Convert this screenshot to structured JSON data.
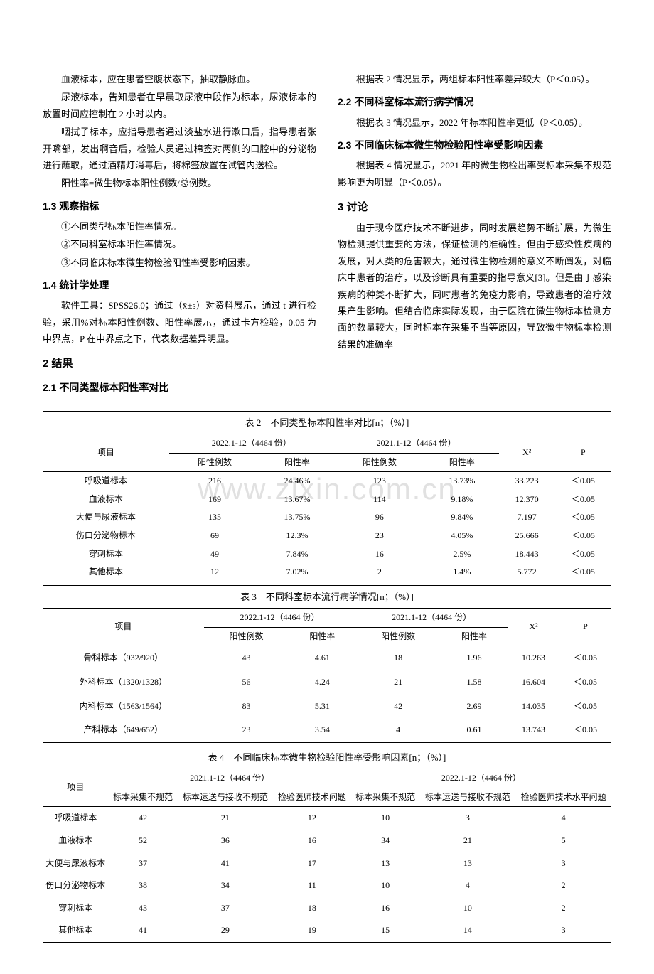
{
  "left_column": {
    "p1": "血液标本，应在患者空腹状态下，抽取静脉血。",
    "p2": "尿液标本，告知患者在早晨取尿液中段作为标本，尿液标本的放置时间应控制在 2 小时以内。",
    "p3": "咽拭子标本，应指导患者通过淡盐水进行漱口后，指导患者张开嘴部，发出啊音后，检验人员通过棉签对两侧的口腔中的分泌物进行蘸取，通过酒精灯消毒后，将棉签放置在试管内送检。",
    "p4": "阳性率=微生物标本阳性例数/总例数。",
    "h1_3": "1.3 观察指标",
    "p5": "①不同类型标本阳性率情况。",
    "p6": "②不同科室标本阳性率情况。",
    "p7": "③不同临床标本微生物检验阳性率受影响因素。",
    "h1_4": "1.4 统计学处理",
    "p8": "软件工具：SPSS26.0；通过（x̄±s）对资料展示，通过 t 进行检验，采用%对标本阳性例数、阳性率展示，通过卡方检验，0.05 为中界点，P 在中界点之下，代表数据差异明显。",
    "h2": "2 结果",
    "h2_1": "2.1 不同类型标本阳性率对比"
  },
  "right_column": {
    "p1": "根据表 2 情况显示，两组标本阳性率差异较大（P＜0.05）。",
    "h2_2": "2.2 不同科室标本流行病学情况",
    "p2": "根据表 3 情况显示，2022 年标本阳性率更低（P＜0.05）。",
    "h2_3": "2.3 不同临床标本微生物检验阳性率受影响因素",
    "p3": "根据表 4 情况显示，2021 年的微生物检出率受标本采集不规范影响更为明显（P＜0.05）。",
    "h3": "3 讨论",
    "p4": "由于现今医疗技术不断进步，同时发展趋势不断扩展，为微生物检测提供重要的方法，保证检测的准确性。但由于感染性疾病的发展，对人类的危害较大，通过微生物检测的意义不断阐发，对临床中患者的治疗，以及诊断具有重要的指导意义[3]。但是由于感染疾病的种类不断扩大，同时患者的免疫力影响，导致患者的治疗效果产生影响。但结合临床实际发现，由于医院在微生物标本检测方面的数量较大，同时标本在采集不当等原因，导致微生物标本检测结果的准确率"
  },
  "watermark": "www.zixin.com.cn",
  "table2": {
    "title": "表 2　不同类型标本阳性率对比[n；（%）]",
    "header_project": "项目",
    "header_2022": "2022.1-12（4464 份）",
    "header_2021": "2021.1-12（4464 份）",
    "header_count": "阳性例数",
    "header_rate": "阳性率",
    "header_x2": "X²",
    "header_p": "P",
    "rows": [
      {
        "label": "呼吸道标本",
        "c1": "216",
        "c2": "24.46%",
        "c3": "123",
        "c4": "13.73%",
        "x2": "33.223",
        "p": "＜0.05"
      },
      {
        "label": "血液标本",
        "c1": "169",
        "c2": "13.67%",
        "c3": "114",
        "c4": "9.18%",
        "x2": "12.370",
        "p": "＜0.05"
      },
      {
        "label": "大便与尿液标本",
        "c1": "135",
        "c2": "13.75%",
        "c3": "96",
        "c4": "9.84%",
        "x2": "7.197",
        "p": "＜0.05"
      },
      {
        "label": "伤口分泌物标本",
        "c1": "69",
        "c2": "12.3%",
        "c3": "23",
        "c4": "4.05%",
        "x2": "25.666",
        "p": "＜0.05"
      },
      {
        "label": "穿刺标本",
        "c1": "49",
        "c2": "7.84%",
        "c3": "16",
        "c4": "2.5%",
        "x2": "18.443",
        "p": "＜0.05"
      },
      {
        "label": "其他标本",
        "c1": "12",
        "c2": "7.02%",
        "c3": "2",
        "c4": "1.4%",
        "x2": "5.772",
        "p": "＜0.05"
      }
    ]
  },
  "table3": {
    "title": "表 3　不同科室标本流行病学情况[n；（%）]",
    "header_project": "项目",
    "header_2022": "2022.1-12（4464 份）",
    "header_2021": "2021.1-12（4464 份）",
    "header_count": "阳性例数",
    "header_rate": "阳性率",
    "header_x2": "X²",
    "header_p": "P",
    "rows": [
      {
        "label": "骨科标本（932/920）",
        "c1": "43",
        "c2": "4.61",
        "c3": "18",
        "c4": "1.96",
        "x2": "10.263",
        "p": "＜0.05"
      },
      {
        "label": "外科标本（1320/1328）",
        "c1": "56",
        "c2": "4.24",
        "c3": "21",
        "c4": "1.58",
        "x2": "16.604",
        "p": "＜0.05"
      },
      {
        "label": "内科标本（1563/1564）",
        "c1": "83",
        "c2": "5.31",
        "c3": "42",
        "c4": "2.69",
        "x2": "14.035",
        "p": "＜0.05"
      },
      {
        "label": "产科标本（649/652）",
        "c1": "23",
        "c2": "3.54",
        "c3": "4",
        "c4": "0.61",
        "x2": "13.743",
        "p": "＜0.05"
      }
    ]
  },
  "table4": {
    "title": "表 4　不同临床标本微生物检验阳性率受影响因素[n；（%）]",
    "header_project": "项目",
    "header_2021": "2021.1-12（4464 份）",
    "header_2022": "2022.1-12（4464 份）",
    "h_a": "标本采集不规范",
    "h_b": "标本运送与接收不规范",
    "h_c": "检验医师技术问题",
    "h_d": "标本采集不规范",
    "h_e": "标本运送与接收不规范",
    "h_f": "检验医师技术水平问题",
    "rows": [
      {
        "label": "呼吸道标本",
        "a": "42",
        "b": "21",
        "c": "12",
        "d": "10",
        "e": "3",
        "f": "4"
      },
      {
        "label": "血液标本",
        "a": "52",
        "b": "36",
        "c": "16",
        "d": "34",
        "e": "21",
        "f": "5"
      },
      {
        "label": "大便与尿液标本",
        "a": "37",
        "b": "41",
        "c": "17",
        "d": "13",
        "e": "13",
        "f": "3"
      },
      {
        "label": "伤口分泌物标本",
        "a": "38",
        "b": "34",
        "c": "11",
        "d": "10",
        "e": "4",
        "f": "2"
      },
      {
        "label": "穿刺标本",
        "a": "43",
        "b": "37",
        "c": "18",
        "d": "16",
        "e": "10",
        "f": "2"
      },
      {
        "label": "其他标本",
        "a": "41",
        "b": "29",
        "c": "19",
        "d": "15",
        "e": "14",
        "f": "3"
      }
    ]
  }
}
